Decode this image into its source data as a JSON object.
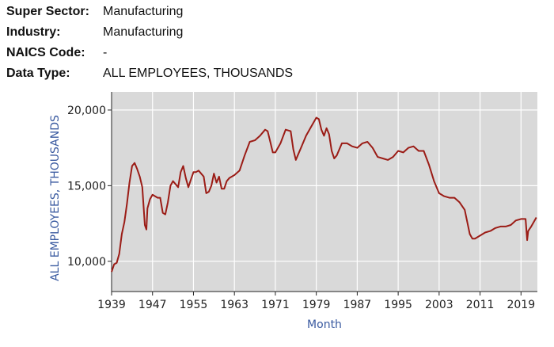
{
  "series_info": [
    {
      "key": "Super Sector:",
      "value": "Manufacturing"
    },
    {
      "key": "Industry:",
      "value": "Manufacturing"
    },
    {
      "key": "NAICS Code:",
      "value": "-"
    },
    {
      "key": "Data Type:",
      "value": "ALL EMPLOYEES, THOUSANDS"
    }
  ],
  "colors": {
    "plot_background": "#d9d9d9",
    "gridline": "#ffffff",
    "series_line": "#9b1c16",
    "axis_title": "#3a5aa0"
  },
  "chart_data": {
    "type": "line",
    "title": "",
    "xlabel": "Month",
    "ylabel": "ALL EMPLOYEES, THOUSANDS",
    "xlim": [
      1939.0,
      2022.2
    ],
    "ylim": [
      8000,
      21200
    ],
    "x_ticks": [
      1939,
      1947,
      1955,
      1963,
      1971,
      1979,
      1987,
      1995,
      2003,
      2011,
      2019
    ],
    "x_tick_labels": [
      "1939",
      "1947",
      "1955",
      "1963",
      "1971",
      "1979",
      "1987",
      "1995",
      "2003",
      "2011",
      "2019"
    ],
    "y_ticks": [
      10000,
      15000,
      20000
    ],
    "y_tick_labels": [
      "10,000",
      "15,000",
      "20,000"
    ],
    "grid": true,
    "legend": "none",
    "series": [
      {
        "x": [
          1939.0,
          1939.5,
          1940.0,
          1940.5,
          1941.0,
          1941.5,
          1942.0,
          1942.5,
          1943.0,
          1943.5,
          1944.0,
          1944.5,
          1945.0,
          1945.5,
          1945.8,
          1946.0,
          1946.5,
          1947.0,
          1947.5,
          1948.0,
          1948.5,
          1949.0,
          1949.5,
          1950.0,
          1950.5,
          1951.0,
          1952.0,
          1952.5,
          1953.0,
          1953.5,
          1954.0,
          1954.5,
          1955.0,
          1955.5,
          1956.0,
          1957.0,
          1957.5,
          1958.0,
          1958.5,
          1959.0,
          1959.5,
          1960.0,
          1960.5,
          1961.0,
          1961.5,
          1962.0,
          1963.0,
          1964.0,
          1965.0,
          1966.0,
          1967.0,
          1968.0,
          1969.0,
          1969.5,
          1970.0,
          1970.5,
          1971.0,
          1972.0,
          1973.0,
          1974.0,
          1974.5,
          1975.0,
          1975.5,
          1976.0,
          1977.0,
          1978.0,
          1979.0,
          1979.5,
          1980.0,
          1980.5,
          1981.0,
          1981.5,
          1982.0,
          1982.5,
          1983.0,
          1984.0,
          1985.0,
          1986.0,
          1987.0,
          1988.0,
          1989.0,
          1990.0,
          1991.0,
          1992.0,
          1993.0,
          1994.0,
          1995.0,
          1996.0,
          1997.0,
          1998.0,
          1999.0,
          2000.0,
          2001.0,
          2002.0,
          2003.0,
          2004.0,
          2005.0,
          2006.0,
          2007.0,
          2008.0,
          2008.5,
          2009.0,
          2009.5,
          2010.0,
          2011.0,
          2012.0,
          2013.0,
          2014.0,
          2015.0,
          2016.0,
          2017.0,
          2018.0,
          2019.0,
          2019.9,
          2020.2,
          2020.4,
          2021.0,
          2022.0
        ],
        "y": [
          9300,
          9800,
          9900,
          10500,
          11800,
          12600,
          13800,
          15200,
          16300,
          16500,
          16100,
          15600,
          14900,
          12400,
          12100,
          13500,
          14100,
          14400,
          14300,
          14200,
          14200,
          13200,
          13100,
          13900,
          15000,
          15300,
          14900,
          15900,
          16300,
          15500,
          14900,
          15400,
          15900,
          15900,
          16000,
          15600,
          14500,
          14600,
          15000,
          15800,
          15200,
          15600,
          14800,
          14800,
          15300,
          15500,
          15700,
          16000,
          17000,
          17900,
          18000,
          18300,
          18700,
          18600,
          17900,
          17200,
          17200,
          17800,
          18700,
          18600,
          17400,
          16700,
          17100,
          17500,
          18300,
          18900,
          19500,
          19400,
          18700,
          18300,
          18800,
          18400,
          17300,
          16800,
          17000,
          17800,
          17800,
          17600,
          17500,
          17800,
          17900,
          17500,
          16900,
          16800,
          16700,
          16900,
          17300,
          17200,
          17500,
          17600,
          17300,
          17300,
          16400,
          15300,
          14500,
          14300,
          14200,
          14200,
          13900,
          13400,
          12600,
          11800,
          11500,
          11500,
          11700,
          11900,
          12000,
          12200,
          12300,
          12300,
          12400,
          12700,
          12800,
          12800,
          11400,
          12000,
          12300,
          12900
        ]
      }
    ]
  }
}
